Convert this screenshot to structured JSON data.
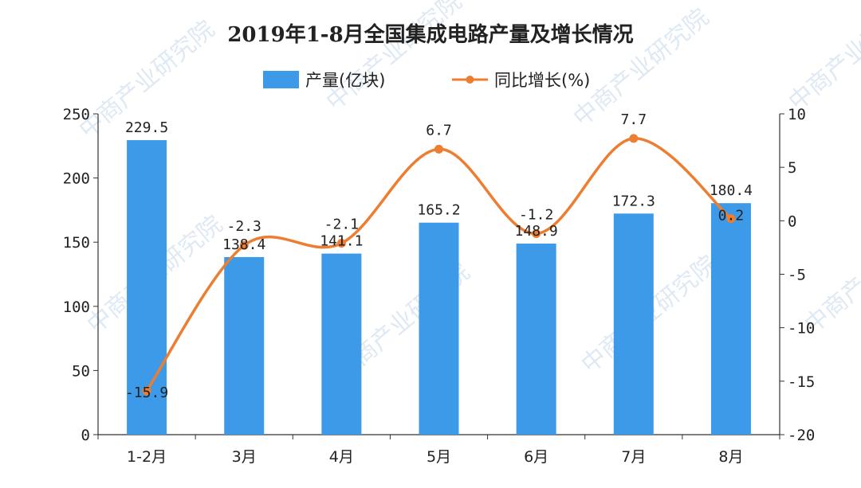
{
  "chart_data": {
    "type": "bar",
    "title": "2019年1-8月全国集成电路产量及增长情况",
    "categories": [
      "1-2月",
      "3月",
      "4月",
      "5月",
      "6月",
      "7月",
      "8月"
    ],
    "series": [
      {
        "name": "产量(亿块)",
        "type": "bar",
        "axis": "left",
        "color": "#3d9ae8",
        "values": [
          229.5,
          138.4,
          141.1,
          165.2,
          148.9,
          172.3,
          180.4
        ]
      },
      {
        "name": "同比增长(%)",
        "type": "line",
        "smooth": true,
        "axis": "right",
        "color": "#ed7d31",
        "values": [
          -15.9,
          -2.3,
          -2.1,
          6.7,
          -1.2,
          7.7,
          0.2
        ]
      }
    ],
    "y_left": {
      "ylim": [
        0,
        250
      ],
      "ticks": [
        "0",
        "50",
        "100",
        "150",
        "200",
        "250"
      ]
    },
    "y_right": {
      "ylim": [
        -20,
        10
      ],
      "ticks": [
        "-20",
        "-15",
        "-10",
        "-5",
        "0",
        "5",
        "10"
      ]
    },
    "legend_position": "top-center",
    "grid": false
  },
  "watermark_text": "中商产业研究院"
}
